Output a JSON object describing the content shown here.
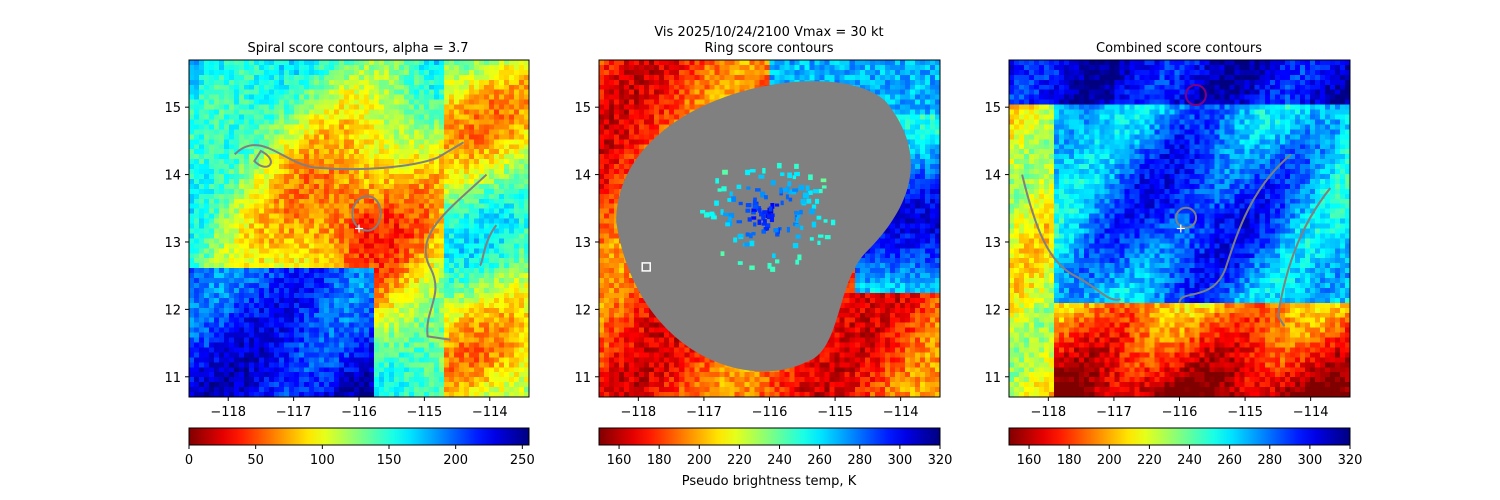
{
  "suptitle": "Vis  2025/10/24/2100    Vmax = 30 kt",
  "chart_data": [
    {
      "type": "heatmap",
      "title": "Spiral score contours, alpha =  3.7",
      "xlim": [
        -118.6,
        -113.4
      ],
      "ylim": [
        10.7,
        15.7
      ],
      "xticks": [
        -118,
        -117,
        -116,
        -115,
        -114
      ],
      "yticks": [
        11,
        12,
        13,
        14,
        15
      ],
      "xticklabels": [
        "−118",
        "−117",
        "−116",
        "−115",
        "−114"
      ],
      "yticklabels": [
        "11",
        "12",
        "13",
        "14",
        "15"
      ],
      "colormap": "jet",
      "colorbar": {
        "range": [
          0,
          255
        ],
        "reversed": true,
        "ticks": [
          0,
          50,
          100,
          150,
          200,
          250
        ],
        "ticklabels": [
          "0",
          "50",
          "100",
          "150",
          "200",
          "250"
        ],
        "label": ""
      },
      "center_marker": {
        "lon": -116.0,
        "lat": 13.2,
        "color": "#ffffff"
      },
      "contour_color": "#808080"
    },
    {
      "type": "heatmap",
      "title": "Ring score contours",
      "xlim": [
        -118.6,
        -113.4
      ],
      "ylim": [
        10.7,
        15.7
      ],
      "xticks": [
        -118,
        -117,
        -116,
        -115,
        -114
      ],
      "yticks": [
        11,
        12,
        13,
        14,
        15
      ],
      "xticklabels": [
        "−118",
        "−117",
        "−116",
        "−115",
        "−114"
      ],
      "yticklabels": [
        "11",
        "12",
        "13",
        "14",
        "15"
      ],
      "colormap": "jet_r",
      "colorbar": {
        "range": [
          150,
          320
        ],
        "reversed": true,
        "ticks": [
          160,
          180,
          200,
          220,
          240,
          260,
          280,
          300,
          320
        ],
        "ticklabels": [
          "160",
          "180",
          "200",
          "220",
          "240",
          "260",
          "280",
          "300",
          "320"
        ],
        "label": "Pseudo brightness temp, K"
      },
      "masked_region_color": "#808080",
      "square_marker": {
        "lon": -117.88,
        "lat": 12.63,
        "color": "#ffffff"
      }
    },
    {
      "type": "heatmap",
      "title": "Combined score contours",
      "xlim": [
        -118.6,
        -113.4
      ],
      "ylim": [
        10.7,
        15.7
      ],
      "xticks": [
        -118,
        -117,
        -116,
        -115,
        -114
      ],
      "yticks": [
        11,
        12,
        13,
        14,
        15
      ],
      "xticklabels": [
        "−118",
        "−117",
        "−116",
        "−115",
        "−114"
      ],
      "yticklabels": [
        "11",
        "12",
        "13",
        "14",
        "15"
      ],
      "colormap": "jet_r",
      "colorbar": {
        "range": [
          150,
          320
        ],
        "reversed": true,
        "ticks": [
          160,
          180,
          200,
          220,
          240,
          260,
          280,
          300,
          320
        ],
        "ticklabels": [
          "160",
          "180",
          "200",
          "220",
          "240",
          "260",
          "280",
          "300",
          "320"
        ],
        "label": ""
      },
      "center_marker": {
        "lon": -115.98,
        "lat": 13.2,
        "color": "#ffffff"
      },
      "max_marker": {
        "lon": -115.75,
        "lat": 15.18,
        "color": "#800080"
      },
      "contour_color": "#808080"
    }
  ]
}
